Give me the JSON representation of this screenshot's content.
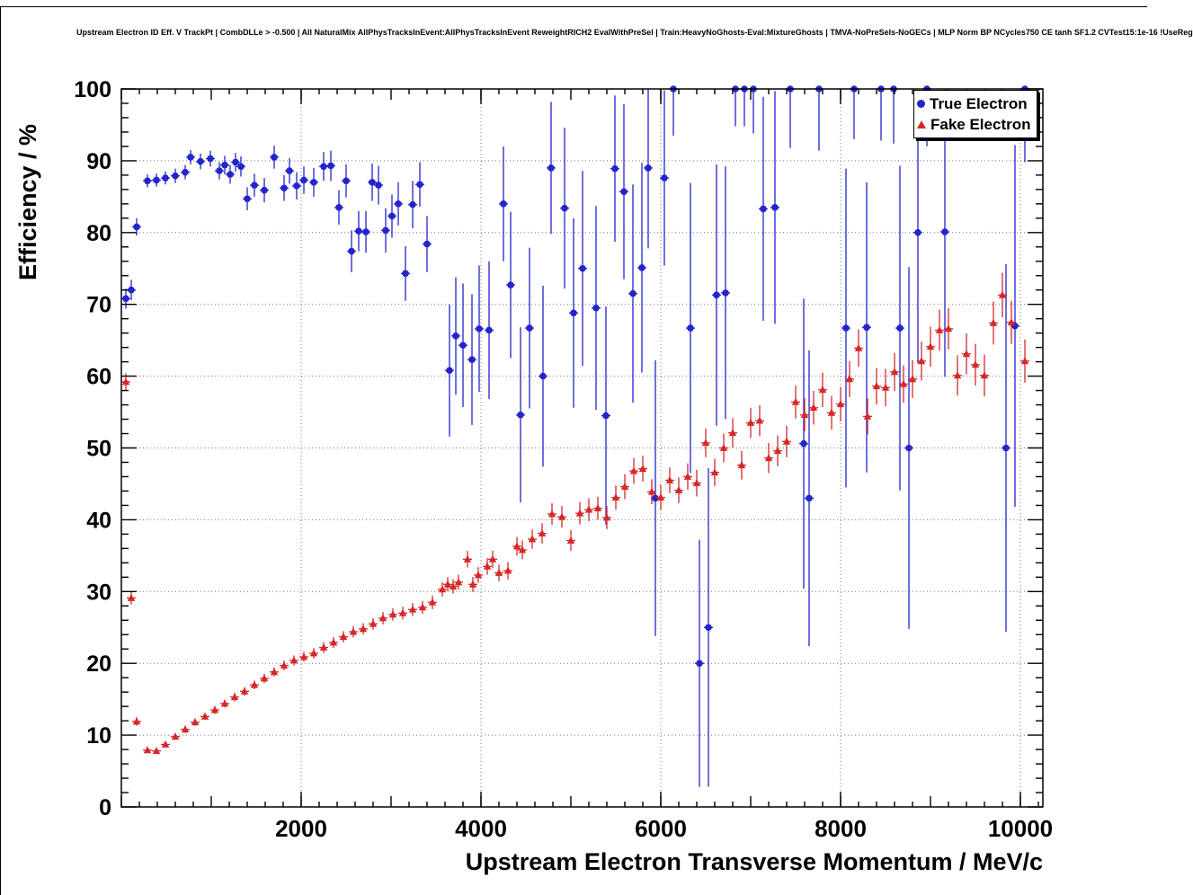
{
  "page": {
    "background": "#ffffff"
  },
  "title": "Upstream Electron ID Eff. V TrackPt | CombDLLe > -0.500 | All NaturalMix AllPhysTracksInEvent:AllPhysTracksInEvent ReweightRICH2 EvalWithPreSel | Train:HeavyNoGhosts-Eval:MixtureGhosts | TMVA-NoPreSels-NoGECs | MLP Norm BP NCycles750 CE tanh SF1.2 CVTest15:1e-16 !UseReg",
  "chart_data": {
    "type": "scatter",
    "title": "Upstream Electron ID Eff. V TrackPt | CombDLLe > -0.500 | All NaturalMix AllPhysTracksInEvent:AllPhysTracksInEvent ReweightRICH2 EvalWithPreSel | Train:HeavyNoGhosts-Eval:MixtureGhosts | TMVA-NoPreSels-NoGECs | MLP Norm BP NCycles750 CE tanh SF1.2 CVTest15:1e-16 !UseReg",
    "xlabel": "Upstream Electron Transverse Momentum / MeV/c",
    "ylabel": "Efficiency / %",
    "xlim": [
      0,
      10250
    ],
    "ylim": [
      0,
      100
    ],
    "x_ticks": [
      2000,
      4000,
      6000,
      8000,
      10000
    ],
    "y_ticks": [
      0,
      10,
      20,
      30,
      40,
      50,
      60,
      70,
      80,
      90,
      100
    ],
    "x_minor_step": 200,
    "y_minor_step": 2,
    "grid": true,
    "legend_position": "top-right",
    "x_bin_halfwidth": 50,
    "series": [
      {
        "name": "True Electron",
        "marker": "circle",
        "color": "#2424cc",
        "points": [
          [
            50,
            70.8,
            1.4
          ],
          [
            110,
            72.0,
            1.4
          ],
          [
            170,
            80.8,
            1.2
          ],
          [
            290,
            87.2,
            0.9
          ],
          [
            390,
            87.3,
            0.9
          ],
          [
            490,
            87.6,
            0.9
          ],
          [
            600,
            87.9,
            1.0
          ],
          [
            710,
            88.4,
            1.0
          ],
          [
            770,
            90.5,
            1.0
          ],
          [
            880,
            89.9,
            1.1
          ],
          [
            990,
            90.3,
            1.1
          ],
          [
            1090,
            88.6,
            1.2
          ],
          [
            1150,
            89.4,
            1.3
          ],
          [
            1210,
            88.1,
            1.3
          ],
          [
            1270,
            89.8,
            1.3
          ],
          [
            1330,
            89.2,
            1.4
          ],
          [
            1400,
            84.7,
            1.6
          ],
          [
            1480,
            86.6,
            1.6
          ],
          [
            1590,
            85.9,
            1.7
          ],
          [
            1700,
            90.5,
            1.6
          ],
          [
            1810,
            86.2,
            1.8
          ],
          [
            1870,
            88.6,
            1.8
          ],
          [
            1950,
            86.5,
            1.9
          ],
          [
            2030,
            87.3,
            1.9
          ],
          [
            2140,
            87.0,
            2.0
          ],
          [
            2250,
            89.2,
            2.0
          ],
          [
            2330,
            89.3,
            2.1
          ],
          [
            2420,
            83.5,
            2.4
          ],
          [
            2500,
            87.2,
            2.3
          ],
          [
            2560,
            77.4,
            2.9
          ],
          [
            2640,
            80.2,
            2.8
          ],
          [
            2720,
            80.1,
            2.9
          ],
          [
            2790,
            87.0,
            2.6
          ],
          [
            2860,
            86.6,
            2.7
          ],
          [
            2940,
            80.3,
            3.1
          ],
          [
            3010,
            82.3,
            3.0
          ],
          [
            3080,
            84.0,
            3.0
          ],
          [
            3160,
            74.3,
            3.8
          ],
          [
            3240,
            83.9,
            3.3
          ],
          [
            3320,
            86.7,
            3.1
          ],
          [
            3400,
            78.4,
            3.9
          ],
          [
            3650,
            60.8,
            9.2
          ],
          [
            3720,
            65.6,
            8.2
          ],
          [
            3800,
            64.3,
            8.6
          ],
          [
            3900,
            62.3,
            9.1
          ],
          [
            3980,
            66.6,
            8.8
          ],
          [
            4090,
            66.4,
            9.6
          ],
          [
            4250,
            84.0,
            8.0
          ],
          [
            4330,
            72.7,
            10.2
          ],
          [
            4440,
            54.6,
            12.2
          ],
          [
            4540,
            66.7,
            11.2
          ],
          [
            4690,
            60.0,
            12.6
          ],
          [
            4780,
            89.0,
            9.2
          ],
          [
            4930,
            83.4,
            11.2
          ],
          [
            5030,
            68.8,
            13.2
          ],
          [
            5130,
            75.0,
            13.6
          ],
          [
            5280,
            69.5,
            14.2
          ],
          [
            5390,
            54.5,
            15.2
          ],
          [
            5490,
            88.9,
            10.2
          ],
          [
            5590,
            85.7,
            12.2
          ],
          [
            5690,
            71.5,
            15.2
          ],
          [
            5790,
            75.1,
            14.6
          ],
          [
            5860,
            89.0,
            11.2
          ],
          [
            5940,
            43.0,
            19.2
          ],
          [
            6040,
            87.6,
            12.2
          ],
          [
            6140,
            100,
            6.5
          ],
          [
            6330,
            66.7,
            20.2
          ],
          [
            6430,
            20.0,
            17.2
          ],
          [
            6530,
            25.0,
            22.2
          ],
          [
            6620,
            71.3,
            18.2
          ],
          [
            6720,
            71.6,
            17.6
          ],
          [
            6830,
            100,
            5.2
          ],
          [
            6930,
            100,
            5.2
          ],
          [
            7030,
            100,
            6.2
          ],
          [
            7140,
            83.3,
            15.6
          ],
          [
            7270,
            83.5,
            16.2
          ],
          [
            7440,
            100,
            8.2
          ],
          [
            7590,
            50.6,
            20.2
          ],
          [
            7650,
            43.0,
            20.6
          ],
          [
            7760,
            100,
            8.6
          ],
          [
            8060,
            66.7,
            22.2
          ],
          [
            8150,
            100,
            7.0
          ],
          [
            8290,
            66.8,
            20.2
          ],
          [
            8450,
            100,
            7.2
          ],
          [
            8590,
            100,
            7.6
          ],
          [
            8660,
            66.7,
            22.6
          ],
          [
            8760,
            50.0,
            25.2
          ],
          [
            8860,
            80.0,
            18.2
          ],
          [
            8960,
            100,
            8.0
          ],
          [
            9160,
            80.1,
            20.2
          ],
          [
            9840,
            50.0,
            25.6
          ],
          [
            9940,
            67.0,
            25.2
          ],
          [
            10050,
            100,
            10.2
          ]
        ]
      },
      {
        "name": "Fake Electron",
        "marker": "triangle",
        "color": "#d62828",
        "points": [
          [
            50,
            59.2,
            1.2
          ],
          [
            110,
            29.1,
            0.9
          ],
          [
            170,
            11.9,
            0.6
          ],
          [
            290,
            7.9,
            0.4
          ],
          [
            390,
            7.8,
            0.4
          ],
          [
            490,
            8.7,
            0.4
          ],
          [
            600,
            9.8,
            0.45
          ],
          [
            710,
            10.8,
            0.5
          ],
          [
            820,
            11.8,
            0.5
          ],
          [
            930,
            12.6,
            0.5
          ],
          [
            1040,
            13.5,
            0.55
          ],
          [
            1150,
            14.4,
            0.55
          ],
          [
            1260,
            15.3,
            0.6
          ],
          [
            1370,
            16.1,
            0.6
          ],
          [
            1480,
            17.0,
            0.6
          ],
          [
            1590,
            17.9,
            0.65
          ],
          [
            1700,
            18.8,
            0.65
          ],
          [
            1810,
            19.7,
            0.7
          ],
          [
            1920,
            20.4,
            0.7
          ],
          [
            2030,
            20.9,
            0.7
          ],
          [
            2140,
            21.4,
            0.72
          ],
          [
            2250,
            22.2,
            0.75
          ],
          [
            2360,
            22.9,
            0.75
          ],
          [
            2470,
            23.7,
            0.78
          ],
          [
            2580,
            24.4,
            0.8
          ],
          [
            2690,
            24.8,
            0.8
          ],
          [
            2800,
            25.5,
            0.82
          ],
          [
            2910,
            26.3,
            0.85
          ],
          [
            3020,
            26.8,
            0.85
          ],
          [
            3130,
            27.0,
            0.88
          ],
          [
            3240,
            27.5,
            0.9
          ],
          [
            3350,
            27.8,
            0.9
          ],
          [
            3460,
            28.5,
            0.95
          ],
          [
            3570,
            30.3,
            1.0
          ],
          [
            3630,
            31.0,
            1.0
          ],
          [
            3690,
            30.7,
            1.0
          ],
          [
            3750,
            31.3,
            1.05
          ],
          [
            3850,
            34.5,
            1.15
          ],
          [
            3910,
            31.0,
            1.05
          ],
          [
            3970,
            32.3,
            1.1
          ],
          [
            4070,
            33.5,
            1.15
          ],
          [
            4130,
            34.5,
            1.2
          ],
          [
            4200,
            32.6,
            1.15
          ],
          [
            4300,
            32.9,
            1.2
          ],
          [
            4400,
            36.3,
            1.3
          ],
          [
            4460,
            35.8,
            1.3
          ],
          [
            4570,
            37.3,
            1.35
          ],
          [
            4680,
            38.1,
            1.4
          ],
          [
            4790,
            40.8,
            1.5
          ],
          [
            4900,
            40.4,
            1.5
          ],
          [
            5000,
            37.1,
            1.45
          ],
          [
            5100,
            40.9,
            1.55
          ],
          [
            5200,
            41.4,
            1.6
          ],
          [
            5300,
            41.6,
            1.6
          ],
          [
            5400,
            40.3,
            1.6
          ],
          [
            5500,
            43.1,
            1.7
          ],
          [
            5600,
            44.6,
            1.75
          ],
          [
            5700,
            46.8,
            1.8
          ],
          [
            5800,
            47.1,
            1.8
          ],
          [
            5900,
            43.9,
            1.75
          ],
          [
            6000,
            43.1,
            1.75
          ],
          [
            6100,
            45.5,
            1.8
          ],
          [
            6200,
            44.1,
            1.8
          ],
          [
            6300,
            46.0,
            1.85
          ],
          [
            6400,
            45.1,
            1.85
          ],
          [
            6500,
            50.7,
            2.0
          ],
          [
            6600,
            46.6,
            1.9
          ],
          [
            6700,
            50.0,
            2.0
          ],
          [
            6800,
            52.1,
            2.05
          ],
          [
            6900,
            47.6,
            2.0
          ],
          [
            7000,
            53.5,
            2.1
          ],
          [
            7100,
            53.8,
            2.15
          ],
          [
            7200,
            48.6,
            2.1
          ],
          [
            7300,
            49.6,
            2.15
          ],
          [
            7400,
            50.9,
            2.2
          ],
          [
            7500,
            56.4,
            2.3
          ],
          [
            7600,
            54.6,
            2.3
          ],
          [
            7700,
            55.6,
            2.35
          ],
          [
            7800,
            58.1,
            2.4
          ],
          [
            7900,
            54.9,
            2.35
          ],
          [
            8000,
            56.1,
            2.4
          ],
          [
            8100,
            59.6,
            2.5
          ],
          [
            8200,
            63.9,
            2.6
          ],
          [
            8300,
            54.4,
            2.5
          ],
          [
            8400,
            58.6,
            2.55
          ],
          [
            8500,
            58.4,
            2.6
          ],
          [
            8600,
            60.6,
            2.65
          ],
          [
            8700,
            58.9,
            2.6
          ],
          [
            8800,
            59.6,
            2.65
          ],
          [
            8900,
            62.1,
            2.7
          ],
          [
            9000,
            64.1,
            2.8
          ],
          [
            9100,
            66.4,
            2.85
          ],
          [
            9200,
            66.6,
            2.9
          ],
          [
            9300,
            60.1,
            2.8
          ],
          [
            9400,
            63.1,
            2.85
          ],
          [
            9500,
            61.6,
            2.9
          ],
          [
            9600,
            60.1,
            2.9
          ],
          [
            9700,
            67.4,
            3.0
          ],
          [
            9800,
            71.3,
            3.1
          ],
          [
            9900,
            67.5,
            3.0
          ],
          [
            10050,
            62.1,
            3.0
          ]
        ]
      }
    ]
  }
}
